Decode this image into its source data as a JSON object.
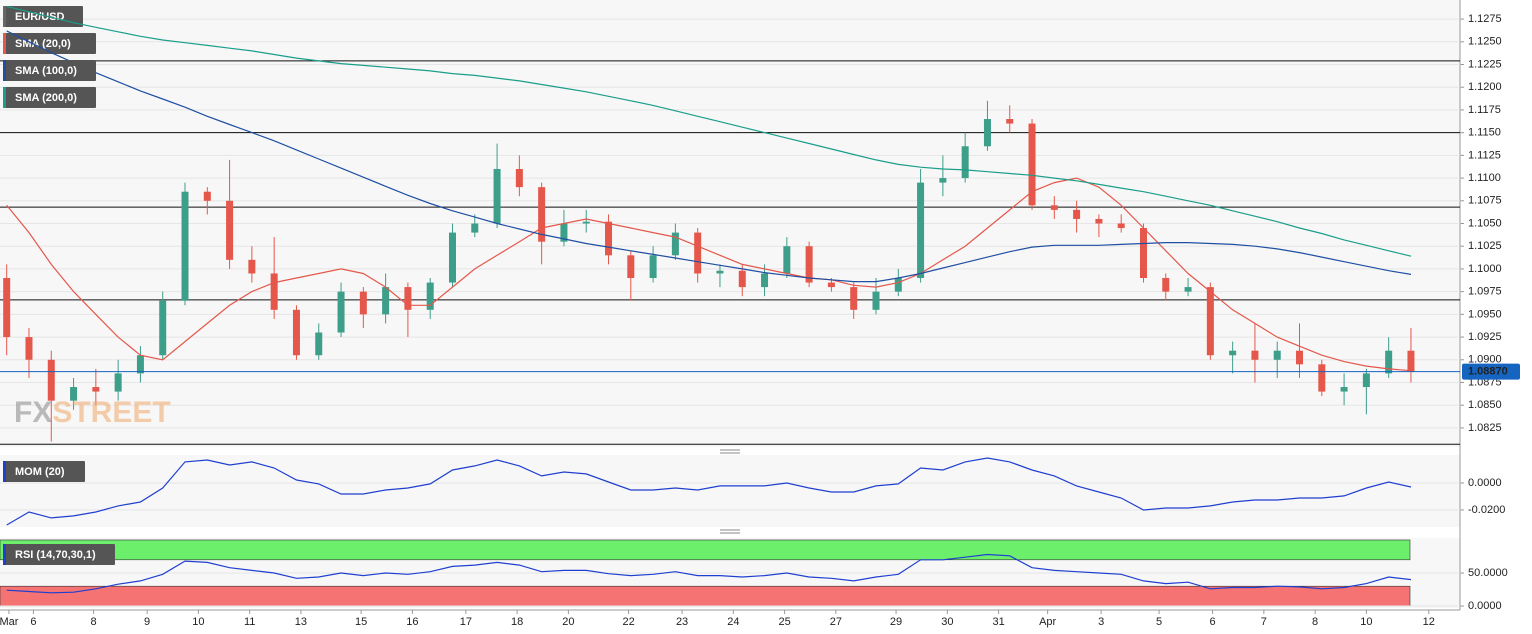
{
  "chart_data": [
    {
      "type": "candlestick",
      "title": "EUR/USD",
      "up_color": "#3d9e8a",
      "down_color": "#e5574b",
      "watermark": [
        "FX",
        "STREET"
      ],
      "xlim": [
        -0.3,
        65.2
      ],
      "xticks": [
        {
          "value": 0.1,
          "label": "Mar"
        },
        {
          "value": 1.2,
          "label": "6"
        },
        {
          "value": 3.9,
          "label": "8"
        },
        {
          "value": 6.3,
          "label": "9"
        },
        {
          "value": 8.6,
          "label": "10"
        },
        {
          "value": 10.9,
          "label": "11"
        },
        {
          "value": 13.2,
          "label": "13"
        },
        {
          "value": 15.9,
          "label": "15"
        },
        {
          "value": 18.2,
          "label": "16"
        },
        {
          "value": 20.6,
          "label": "17"
        },
        {
          "value": 22.9,
          "label": "18"
        },
        {
          "value": 25.2,
          "label": "20"
        },
        {
          "value": 27.9,
          "label": "22"
        },
        {
          "value": 30.3,
          "label": "23"
        },
        {
          "value": 32.6,
          "label": "24"
        },
        {
          "value": 34.9,
          "label": "25"
        },
        {
          "value": 37.2,
          "label": "27"
        },
        {
          "value": 39.9,
          "label": "29"
        },
        {
          "value": 42.2,
          "label": "30"
        },
        {
          "value": 44.5,
          "label": "31"
        },
        {
          "value": 46.7,
          "label": "Apr"
        },
        {
          "value": 49.1,
          "label": "3"
        },
        {
          "value": 51.7,
          "label": "5"
        },
        {
          "value": 54.1,
          "label": "6"
        },
        {
          "value": 56.4,
          "label": "7"
        },
        {
          "value": 58.7,
          "label": "8"
        },
        {
          "value": 61.0,
          "label": "10"
        },
        {
          "value": 63.8,
          "label": "12"
        }
      ],
      "ylim": [
        1.0804,
        1.1296
      ],
      "yticks": [
        {
          "value": 1.0825,
          "label": "1.0825"
        },
        {
          "value": 1.085,
          "label": "1.0850"
        },
        {
          "value": 1.0875,
          "label": "1.0875"
        },
        {
          "value": 1.09,
          "label": "1.0900"
        },
        {
          "value": 1.0925,
          "label": "1.0925"
        },
        {
          "value": 1.095,
          "label": "1.0950"
        },
        {
          "value": 1.0975,
          "label": "1.0975"
        },
        {
          "value": 1.1,
          "label": "1.1000"
        },
        {
          "value": 1.1025,
          "label": "1.1025"
        },
        {
          "value": 1.105,
          "label": "1.1050"
        },
        {
          "value": 1.1075,
          "label": "1.1075"
        },
        {
          "value": 1.11,
          "label": "1.1100"
        },
        {
          "value": 1.1125,
          "label": "1.1125"
        },
        {
          "value": 1.115,
          "label": "1.1150"
        },
        {
          "value": 1.1175,
          "label": "1.1175"
        },
        {
          "value": 1.12,
          "label": "1.1200"
        },
        {
          "value": 1.1225,
          "label": "1.1225"
        },
        {
          "value": 1.125,
          "label": "1.1250"
        },
        {
          "value": 1.1275,
          "label": "1.1275"
        }
      ],
      "levels": [
        1.1229,
        1.115,
        1.1068,
        1.0966,
        1.0807
      ],
      "last": {
        "value": 1.0887,
        "label": "1.08870",
        "color": "#1565c0"
      },
      "open": [
        1.099,
        1.0925,
        1.09,
        1.0855,
        1.087,
        1.0865,
        1.0885,
        1.0905,
        1.0965,
        1.1085,
        1.1075,
        1.101,
        1.0995,
        1.0955,
        1.0905,
        1.093,
        1.0975,
        1.095,
        1.098,
        1.0955,
        1.0985,
        1.104,
        1.105,
        1.111,
        1.109,
        1.103,
        1.105,
        1.1052,
        1.1015,
        1.099,
        1.1015,
        1.104,
        1.0995,
        1.0998,
        1.098,
        1.0995,
        1.1025,
        1.0985,
        1.098,
        1.0955,
        1.0975,
        1.099,
        1.1095,
        1.11,
        1.1135,
        1.1165,
        1.116,
        1.107,
        1.1065,
        1.1055,
        1.105,
        1.1045,
        1.099,
        1.0975,
        1.098,
        1.0905,
        1.091,
        1.09,
        1.091,
        1.0895,
        1.0865,
        1.087,
        1.0885,
        1.091
      ],
      "high": [
        1.1005,
        1.0935,
        1.091,
        1.088,
        1.089,
        1.09,
        1.0915,
        1.0975,
        1.1095,
        1.109,
        1.112,
        1.1025,
        1.1035,
        1.096,
        1.094,
        1.0985,
        1.098,
        1.0995,
        1.0985,
        1.099,
        1.105,
        1.106,
        1.1138,
        1.1125,
        1.1095,
        1.1065,
        1.1065,
        1.106,
        1.102,
        1.1025,
        1.105,
        1.1045,
        1.1005,
        1.1005,
        1.1005,
        1.1035,
        1.103,
        1.099,
        1.0985,
        1.099,
        1.1,
        1.111,
        1.1125,
        1.115,
        1.1185,
        1.118,
        1.1165,
        1.108,
        1.1075,
        1.106,
        1.106,
        1.105,
        1.0995,
        1.099,
        1.0985,
        1.092,
        1.094,
        1.092,
        1.094,
        1.09,
        1.0885,
        1.089,
        1.0925,
        1.0935
      ],
      "low": [
        1.0905,
        1.088,
        1.081,
        1.0845,
        1.085,
        1.0855,
        1.0875,
        1.09,
        1.096,
        1.106,
        1.1,
        1.0985,
        1.0945,
        1.09,
        1.09,
        1.0925,
        1.0935,
        1.094,
        1.0925,
        1.0945,
        1.098,
        1.1035,
        1.1045,
        1.108,
        1.1005,
        1.1025,
        1.104,
        1.1005,
        1.0965,
        1.0985,
        1.101,
        1.0985,
        1.098,
        1.097,
        1.097,
        1.099,
        1.098,
        1.0975,
        1.0945,
        1.095,
        1.097,
        1.0985,
        1.108,
        1.1095,
        1.113,
        1.115,
        1.1065,
        1.1055,
        1.104,
        1.1035,
        1.104,
        1.0985,
        1.0965,
        1.097,
        1.09,
        1.0885,
        1.0875,
        1.088,
        1.088,
        1.086,
        1.085,
        1.084,
        1.088,
        1.0875
      ],
      "close": [
        1.0925,
        1.09,
        1.0855,
        1.087,
        1.0865,
        1.0885,
        1.0905,
        1.0965,
        1.1085,
        1.1075,
        1.101,
        1.0995,
        1.0955,
        1.0905,
        1.093,
        1.0975,
        1.095,
        1.098,
        1.0955,
        1.0985,
        1.104,
        1.105,
        1.111,
        1.109,
        1.103,
        1.105,
        1.1052,
        1.1015,
        1.099,
        1.1015,
        1.104,
        1.0995,
        1.0998,
        1.098,
        1.0995,
        1.1025,
        1.0985,
        1.098,
        1.0955,
        1.0975,
        1.099,
        1.1095,
        1.11,
        1.1135,
        1.1165,
        1.116,
        1.107,
        1.1065,
        1.1055,
        1.105,
        1.1045,
        1.099,
        1.0975,
        1.098,
        1.0905,
        1.091,
        1.09,
        1.091,
        1.0895,
        1.0865,
        1.087,
        1.0885,
        1.091,
        1.0887
      ],
      "series": [
        {
          "name": "SMA (20,0)",
          "color": "#e5574b",
          "values": [
            1.107,
            1.104,
            1.1005,
            1.0975,
            1.095,
            1.0925,
            1.0905,
            1.09,
            1.092,
            1.094,
            1.096,
            1.0975,
            1.0985,
            1.099,
            1.0995,
            1.1,
            1.0995,
            1.098,
            1.096,
            1.096,
            1.098,
            1.1,
            1.1015,
            1.103,
            1.1045,
            1.105,
            1.1055,
            1.105,
            1.1045,
            1.104,
            1.1035,
            1.1025,
            1.1015,
            1.1005,
            1.1,
            1.0995,
            1.099,
            1.0988,
            1.0982,
            1.098,
            1.0985,
            1.0995,
            1.101,
            1.1025,
            1.1045,
            1.1065,
            1.1085,
            1.1095,
            1.11,
            1.109,
            1.107,
            1.1045,
            1.102,
            1.0995,
            1.0975,
            1.0955,
            1.094,
            1.0925,
            1.0915,
            1.0905,
            1.0898,
            1.0893,
            1.089,
            1.0888
          ]
        },
        {
          "name": "SMA (100,0)",
          "color": "#1f4fa3",
          "values": [
            1.1262,
            1.125,
            1.1238,
            1.1227,
            1.1216,
            1.1206,
            1.1196,
            1.1187,
            1.1178,
            1.1168,
            1.1159,
            1.115,
            1.1141,
            1.1131,
            1.1121,
            1.1111,
            1.1101,
            1.1091,
            1.1081,
            1.1072,
            1.1064,
            1.1057,
            1.105,
            1.1044,
            1.1038,
            1.1033,
            1.1028,
            1.1024,
            1.102,
            1.1016,
            1.1012,
            1.1008,
            1.1004,
            1.1,
            1.0996,
            1.0993,
            1.099,
            1.0988,
            1.0986,
            1.0986,
            1.099,
            1.0995,
            1.1001,
            1.1007,
            1.1013,
            1.1019,
            1.1024,
            1.1026,
            1.1026,
            1.1026,
            1.1027,
            1.1028,
            1.1029,
            1.1029,
            1.1028,
            1.1027,
            1.1025,
            1.1022,
            1.1018,
            1.1013,
            1.1008,
            1.1003,
            1.0998,
            1.0994
          ]
        },
        {
          "name": "SMA (200,0)",
          "color": "#1a9e8a",
          "values": [
            1.1289,
            1.1283,
            1.1277,
            1.1271,
            1.1266,
            1.1261,
            1.1256,
            1.1252,
            1.1249,
            1.1246,
            1.1243,
            1.124,
            1.1236,
            1.1232,
            1.1229,
            1.1226,
            1.1224,
            1.1222,
            1.122,
            1.1218,
            1.1215,
            1.1213,
            1.121,
            1.1207,
            1.1203,
            1.1199,
            1.1195,
            1.119,
            1.1185,
            1.118,
            1.1174,
            1.1168,
            1.1162,
            1.1156,
            1.115,
            1.1144,
            1.1138,
            1.1132,
            1.1126,
            1.112,
            1.1115,
            1.1112,
            1.111,
            1.1109,
            1.1107,
            1.1105,
            1.1103,
            1.11,
            1.1097,
            1.1093,
            1.1089,
            1.1085,
            1.108,
            1.1075,
            1.107,
            1.1064,
            1.1058,
            1.1052,
            1.1045,
            1.1039,
            1.1032,
            1.1026,
            1.102,
            1.1014
          ]
        }
      ]
    },
    {
      "type": "line",
      "ylim": [
        -0.0326,
        0.0207
      ],
      "yticks": [
        {
          "value": -0.02,
          "label": "-0.0200"
        },
        {
          "value": 0,
          "label": "0.0000"
        }
      ],
      "series": [
        {
          "name": "MOM (20)",
          "color": "#1f3fd0",
          "values": [
            -0.0311,
            -0.0215,
            -0.0259,
            -0.0244,
            -0.0215,
            -0.017,
            -0.0141,
            -0.0037,
            0.0156,
            0.017,
            0.0133,
            0.0156,
            0.0111,
            0.0022,
            -0.0007,
            -0.0082,
            -0.0082,
            -0.0052,
            -0.0037,
            -0.0007,
            0.0096,
            0.0126,
            0.017,
            0.0126,
            0.0052,
            0.0081,
            0.0067,
            0.0007,
            -0.0052,
            -0.0052,
            -0.0037,
            -0.0052,
            -0.0022,
            -0.0022,
            -0.0022,
            0,
            -0.0037,
            -0.0067,
            -0.0067,
            -0.0022,
            -0.0007,
            0.0111,
            0.0096,
            0.0156,
            0.0185,
            0.0156,
            0.0096,
            0.0052,
            -0.0022,
            -0.0067,
            -0.0111,
            -0.02,
            -0.0185,
            -0.0185,
            -0.017,
            -0.0141,
            -0.0126,
            -0.0126,
            -0.0111,
            -0.0111,
            -0.0096,
            -0.0037,
            0.0007,
            -0.003
          ]
        }
      ]
    },
    {
      "type": "line",
      "ylim": [
        -3,
        103
      ],
      "yticks": [
        {
          "value": 0,
          "label": "0.0000"
        },
        {
          "value": 50,
          "label": "50.0000"
        }
      ],
      "bands": [
        {
          "from": 70,
          "to": 100,
          "color": "#6cf06c"
        },
        {
          "from": 0,
          "to": 30,
          "color": "#f57373"
        }
      ],
      "series": [
        {
          "name": "RSI (14,70,30,1)",
          "color": "#1f3fd0",
          "values": [
            24,
            22,
            20,
            21,
            26,
            33,
            38,
            48,
            68,
            66,
            58,
            54,
            50,
            42,
            44,
            50,
            46,
            50,
            48,
            52,
            60,
            62,
            66,
            62,
            52,
            54,
            54,
            49,
            46,
            48,
            52,
            46,
            46,
            44,
            46,
            50,
            44,
            42,
            38,
            44,
            48,
            70,
            70,
            74,
            78,
            76,
            58,
            54,
            52,
            50,
            48,
            38,
            34,
            36,
            26,
            28,
            28,
            30,
            29,
            26,
            28,
            34,
            44,
            40
          ]
        }
      ]
    }
  ]
}
